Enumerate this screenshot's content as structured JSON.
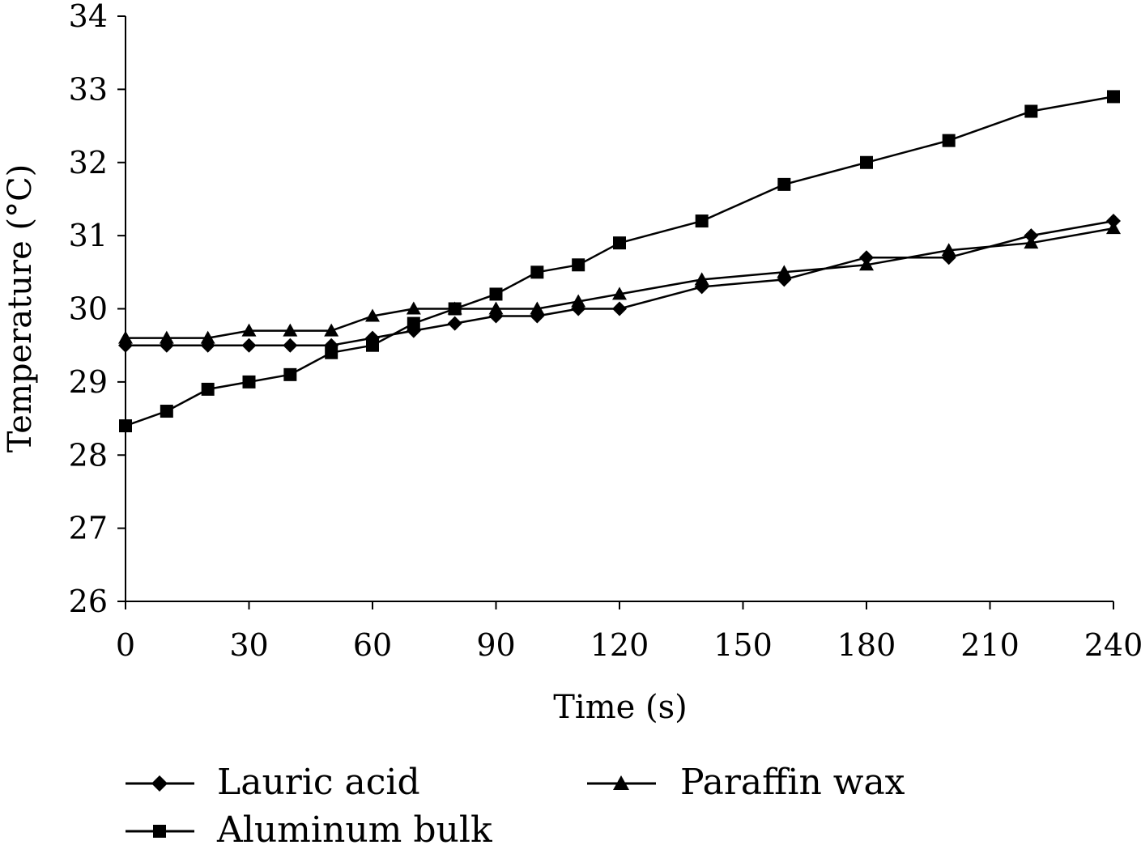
{
  "chart_data": {
    "type": "line",
    "title": "",
    "xlabel": "Time (s)",
    "ylabel": "Temperature (°C)",
    "xlim": [
      0,
      240
    ],
    "ylim": [
      26,
      34
    ],
    "xticks": [
      0,
      30,
      60,
      90,
      120,
      150,
      180,
      210,
      240
    ],
    "yticks": [
      26,
      27,
      28,
      29,
      30,
      31,
      32,
      33,
      34
    ],
    "grid": false,
    "legend_position": "bottom",
    "series": [
      {
        "name": "Lauric acid",
        "marker": "diamond",
        "x": [
          0,
          10,
          20,
          30,
          40,
          50,
          60,
          70,
          80,
          90,
          100,
          110,
          120,
          140,
          160,
          180,
          200,
          220,
          240
        ],
        "y": [
          29.5,
          29.5,
          29.5,
          29.5,
          29.5,
          29.5,
          29.6,
          29.7,
          29.8,
          29.9,
          29.9,
          30.0,
          30.0,
          30.3,
          30.4,
          30.7,
          30.7,
          31.0,
          31.2
        ]
      },
      {
        "name": "Aluminum bulk",
        "marker": "square",
        "x": [
          0,
          10,
          20,
          30,
          40,
          50,
          60,
          70,
          80,
          90,
          100,
          110,
          120,
          140,
          160,
          180,
          200,
          220,
          240
        ],
        "y": [
          28.4,
          28.6,
          28.9,
          29.0,
          29.1,
          29.4,
          29.5,
          29.8,
          30.0,
          30.2,
          30.5,
          30.6,
          30.9,
          31.2,
          31.7,
          32.0,
          32.3,
          32.7,
          32.9
        ]
      },
      {
        "name": "Paraffin wax",
        "marker": "triangle",
        "x": [
          0,
          10,
          20,
          30,
          40,
          50,
          60,
          70,
          80,
          90,
          100,
          110,
          120,
          140,
          160,
          180,
          200,
          220,
          240
        ],
        "y": [
          29.6,
          29.6,
          29.6,
          29.7,
          29.7,
          29.7,
          29.9,
          30.0,
          30.0,
          30.0,
          30.0,
          30.1,
          30.2,
          30.4,
          30.5,
          30.6,
          30.8,
          30.9,
          31.1
        ]
      }
    ]
  },
  "colors": {
    "ink": "#000000",
    "background": "#ffffff"
  }
}
